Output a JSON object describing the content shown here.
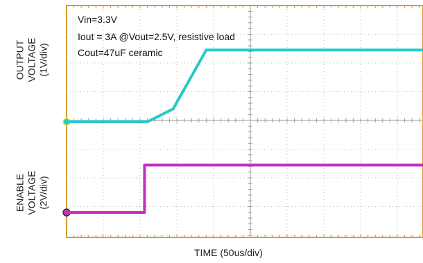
{
  "chart_data": {
    "type": "line",
    "title": "",
    "annotations": [
      "Vin=3.3V",
      "Iout = 3A @Vout=2.5V, resistive load",
      "Cout=47uF ceramic"
    ],
    "xlabel": "TIME  (50us/div)",
    "ylabel_output": [
      "OUTPUT",
      "VOLTAGE",
      "(1V/div)"
    ],
    "ylabel_enable": [
      "ENABLE",
      "VOLTAGE",
      "(2V/div)"
    ],
    "x_unit": "us",
    "x_per_div": 50,
    "x_divisions": 10,
    "xlim": [
      0,
      500
    ],
    "grid": true,
    "series": [
      {
        "channel": "output",
        "color": "#27c8c8",
        "volts_per_div": 1,
        "x": [
          0,
          110,
          145,
          190,
          500
        ],
        "y": [
          0,
          0,
          0.45,
          2.5,
          2.5
        ]
      },
      {
        "channel": "enable",
        "color": "#c62fc6",
        "volts_per_div": 2,
        "x": [
          0,
          106,
          106,
          500
        ],
        "y": [
          0,
          0,
          3.3,
          3.3
        ]
      }
    ]
  }
}
